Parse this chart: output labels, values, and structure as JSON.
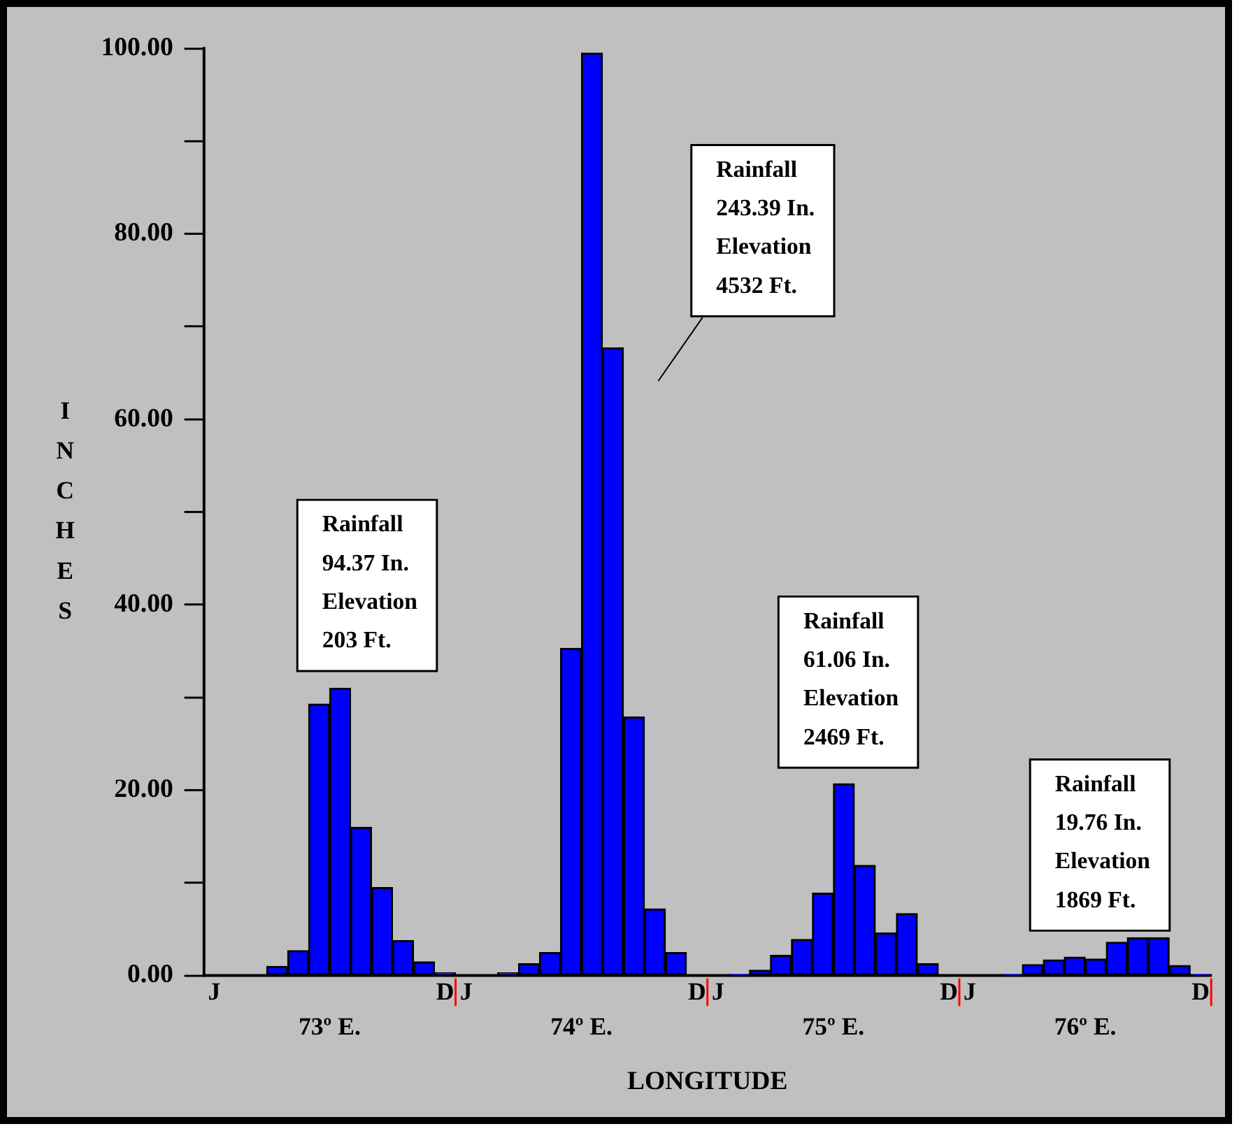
{
  "chart_data": {
    "type": "bar",
    "ylabel": "INCHES",
    "xlabel": "LONGITUDE",
    "categories": [
      "J",
      null,
      null,
      null,
      null,
      null,
      null,
      null,
      null,
      null,
      null,
      "D",
      "J",
      null,
      null,
      null,
      null,
      null,
      null,
      null,
      null,
      null,
      null,
      "D",
      "J",
      null,
      null,
      null,
      null,
      null,
      null,
      null,
      null,
      null,
      null,
      "D",
      "J",
      null,
      null,
      null,
      null,
      null,
      null,
      null,
      null,
      null,
      null,
      "D"
    ],
    "values": [
      0,
      0,
      0,
      1.0,
      2.7,
      29.3,
      31.0,
      16.0,
      9.5,
      3.8,
      1.5,
      0.3,
      0,
      0,
      0.3,
      1.3,
      2.5,
      35.3,
      99.5,
      67.7,
      27.9,
      7.2,
      2.5,
      0,
      0,
      0.1,
      0.6,
      2.2,
      3.9,
      8.9,
      20.7,
      11.9,
      4.6,
      6.7,
      1.3,
      0,
      0,
      0,
      0.1,
      1.2,
      1.7,
      2.0,
      1.8,
      3.6,
      4.1,
      4.1,
      1.1,
      0.1
    ],
    "color": "#0000ff",
    "ylim": [
      0,
      100
    ],
    "yticks": [
      {
        "value": 0,
        "label": "0.00"
      },
      {
        "value": 10,
        "label": null
      },
      {
        "value": 20,
        "label": "20.00"
      },
      {
        "value": 30,
        "label": null
      },
      {
        "value": 40,
        "label": "40.00"
      },
      {
        "value": 50,
        "label": null
      },
      {
        "value": 60,
        "label": "60.00"
      },
      {
        "value": 70,
        "label": null
      },
      {
        "value": 80,
        "label": "80.00"
      },
      {
        "value": 90,
        "label": null
      },
      {
        "value": 100,
        "label": "100.00"
      }
    ],
    "grid": false,
    "legend": false,
    "annotations": [
      "73º E.",
      "74º E.",
      "75º E.",
      "76º E.",
      "Rainfall\n94.37 In.\nElevation\n203 Ft.",
      "Rainfall\n243.39 In.\nElevation\n4532 Ft.",
      "Rainfall\n61.06 In.\nElevation\n2469 Ft.",
      "Rainfall\n19.76 In.\nElevation\n1869 Ft."
    ]
  }
}
